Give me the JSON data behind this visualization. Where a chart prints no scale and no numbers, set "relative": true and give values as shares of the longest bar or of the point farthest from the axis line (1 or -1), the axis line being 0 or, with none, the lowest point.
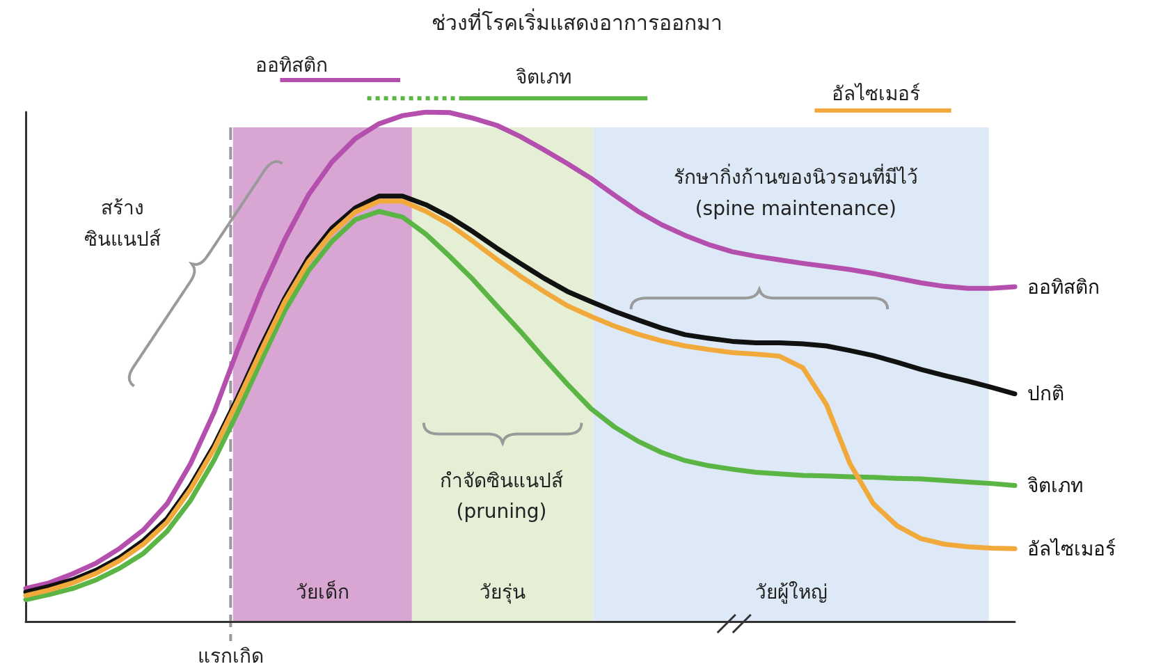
{
  "chart_data": {
    "type": "line",
    "relative": true,
    "title": "ช่วงที่โรคเริ่มแสดงอาการออกมา",
    "grid": false,
    "legend": false,
    "marker": "none",
    "line_style": "solid",
    "categories": [
      null,
      null,
      null,
      null,
      null,
      null,
      null,
      null,
      null,
      null,
      null,
      null,
      null,
      null,
      null,
      null,
      null,
      null,
      null,
      null,
      null,
      null,
      null,
      null,
      null,
      null,
      null,
      null,
      null,
      null,
      null,
      null,
      null,
      null,
      null,
      null,
      null,
      null,
      null,
      null,
      null,
      null,
      null
    ],
    "series": [
      {
        "name": "ออทิสติก",
        "color": "#b54fad",
        "values": [
          0.065,
          0.076,
          0.094,
          0.115,
          0.144,
          0.18,
          0.231,
          0.31,
          0.411,
          0.534,
          0.649,
          0.75,
          0.837,
          0.902,
          0.948,
          0.977,
          0.993,
          1,
          0.999,
          0.988,
          0.974,
          0.952,
          0.926,
          0.899,
          0.87,
          0.837,
          0.805,
          0.779,
          0.758,
          0.74,
          0.726,
          0.717,
          0.71,
          0.703,
          0.697,
          0.691,
          0.683,
          0.674,
          0.665,
          0.658,
          0.654,
          0.654,
          0.657
        ]
      },
      {
        "name": "ปกติ",
        "color": "#111111",
        "values": [
          0.058,
          0.069,
          0.082,
          0.101,
          0.126,
          0.159,
          0.202,
          0.267,
          0.346,
          0.44,
          0.541,
          0.635,
          0.714,
          0.772,
          0.812,
          0.835,
          0.835,
          0.818,
          0.794,
          0.765,
          0.733,
          0.703,
          0.674,
          0.648,
          0.628,
          0.609,
          0.592,
          0.576,
          0.563,
          0.556,
          0.55,
          0.547,
          0.547,
          0.545,
          0.541,
          0.532,
          0.522,
          0.509,
          0.495,
          0.483,
          0.472,
          0.46,
          0.447
        ]
      },
      {
        "name": "จิตเภท",
        "color": "#5bb544",
        "values": [
          0.043,
          0.053,
          0.065,
          0.082,
          0.105,
          0.134,
          0.177,
          0.238,
          0.317,
          0.411,
          0.512,
          0.61,
          0.688,
          0.746,
          0.789,
          0.805,
          0.794,
          0.76,
          0.717,
          0.671,
          0.62,
          0.57,
          0.517,
          0.466,
          0.418,
          0.382,
          0.354,
          0.332,
          0.316,
          0.306,
          0.299,
          0.293,
          0.29,
          0.287,
          0.286,
          0.284,
          0.283,
          0.281,
          0.28,
          0.277,
          0.274,
          0.271,
          0.267
        ]
      },
      {
        "name": "อัลไซเมอร์",
        "color": "#f2a93b",
        "values": [
          0.051,
          0.062,
          0.076,
          0.095,
          0.12,
          0.152,
          0.195,
          0.26,
          0.339,
          0.433,
          0.532,
          0.628,
          0.706,
          0.763,
          0.804,
          0.825,
          0.825,
          0.805,
          0.779,
          0.746,
          0.711,
          0.678,
          0.648,
          0.62,
          0.599,
          0.58,
          0.564,
          0.551,
          0.541,
          0.534,
          0.528,
          0.525,
          0.521,
          0.498,
          0.426,
          0.31,
          0.231,
          0.188,
          0.163,
          0.152,
          0.147,
          0.144,
          0.143
        ]
      }
    ],
    "annotations": [
      "ออทิสติก",
      "จิตเภท",
      "อัลไซเมอร์",
      "สร้าง\nซินแนปส์",
      "กำจัดซินแนปส์\n(pruning)",
      "รักษากิ่งก้านของนิวรอนที่มีไว้\n(spine maintenance)",
      "วัยเด็ก",
      "วัยรุ่น",
      "วัยผู้ใหญ่",
      "แรกเกิด"
    ]
  }
}
